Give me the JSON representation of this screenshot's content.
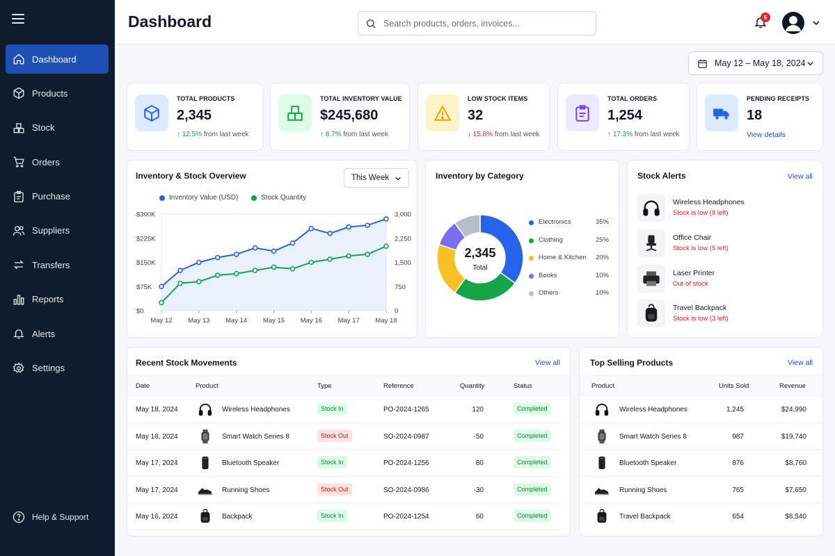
{
  "header": {
    "title": "Dashboard",
    "search_placeholder": "Search products, orders, invoices...",
    "notification_count": "5"
  },
  "sidebar": {
    "items": [
      {
        "label": "Dashboard",
        "icon": "home-icon"
      },
      {
        "label": "Products",
        "icon": "box-icon"
      },
      {
        "label": "Stock",
        "icon": "stock-icon"
      },
      {
        "label": "Orders",
        "icon": "cart-icon"
      },
      {
        "label": "Purchase",
        "icon": "clipboard-icon"
      },
      {
        "label": "Suppliers",
        "icon": "users-icon"
      },
      {
        "label": "Transfers",
        "icon": "transfer-icon"
      },
      {
        "label": "Reports",
        "icon": "bar-chart-icon"
      },
      {
        "label": "Alerts",
        "icon": "bell-icon"
      },
      {
        "label": "Settings",
        "icon": "gear-icon"
      }
    ],
    "help_label": "Help & Support"
  },
  "date_range": "May 12 – May 18, 2024",
  "kpis": [
    {
      "label": "TOTAL PRODUCTS",
      "value": "2,345",
      "delta": "12.5%",
      "delta_text": "from last week",
      "direction": "up",
      "color": "#2563eb",
      "bg": "#dbeafe"
    },
    {
      "label": "TOTAL INVENTORY VALUE",
      "value": "$245,680",
      "delta": "8.7%",
      "delta_text": "from last week",
      "direction": "up",
      "color": "#16a34a",
      "bg": "#dcfce7"
    },
    {
      "label": "LOW STOCK ITEMS",
      "value": "32",
      "delta": "15.8%",
      "delta_text": "from last week",
      "direction": "down",
      "color": "#f59e0b",
      "bg": "#fef3c7"
    },
    {
      "label": "TOTAL ORDERS",
      "value": "1,254",
      "delta": "17.3%",
      "delta_text": "from last week",
      "direction": "up",
      "color": "#7c3aed",
      "bg": "#ede9fe"
    },
    {
      "label": "PENDING RECEIPTS",
      "value": "18",
      "link": "View details",
      "color": "#2563eb",
      "bg": "#dbeafe"
    }
  ],
  "overview": {
    "title": "Inventory & Stock Overview",
    "select_value": "This Week"
  },
  "category": {
    "title": "Inventory by Category",
    "center_value": "2,345",
    "center_label": "Total"
  },
  "stock_alerts": {
    "title": "Stock Alerts",
    "view_all": "View all",
    "items": [
      {
        "name": "Wireless Headphones",
        "status": "Stock is low (8 left)",
        "icon": "headphones-icon"
      },
      {
        "name": "Office Chair",
        "status": "Stock is low (5 left)",
        "icon": "chair-icon"
      },
      {
        "name": "Laser Printer",
        "status": "Out of stock",
        "icon": "printer-icon"
      },
      {
        "name": "Travel Backpack",
        "status": "Stock is low (3 left)",
        "icon": "backpack-icon"
      }
    ]
  },
  "movements": {
    "title": "Recent Stock Movements",
    "view_all": "View all",
    "columns": [
      "Date",
      "Product",
      "Type",
      "Reference",
      "Quantity",
      "Status"
    ],
    "rows": [
      {
        "date": "May 18, 2024",
        "product": "Wireless Headphones",
        "icon": "headphones-icon",
        "type": "Stock In",
        "kind": "in",
        "reference": "PO-2024-1265",
        "quantity": "120",
        "status": "Completed"
      },
      {
        "date": "May 18, 2024",
        "product": "Smart Watch Series 8",
        "icon": "watch-icon",
        "type": "Stock Out",
        "kind": "out",
        "reference": "SO-2024-0987",
        "quantity": "-50",
        "status": "Completed"
      },
      {
        "date": "May 17, 2024",
        "product": "Bluetooth Speaker",
        "icon": "speaker-icon",
        "type": "Stock In",
        "kind": "in",
        "reference": "PO-2024-1256",
        "quantity": "80",
        "status": "Completed"
      },
      {
        "date": "May 17, 2024",
        "product": "Running Shoes",
        "icon": "shoe-icon",
        "type": "Stock Out",
        "kind": "out",
        "reference": "SO-2024-0986",
        "quantity": "-30",
        "status": "Completed"
      },
      {
        "date": "May 16, 2024",
        "product": "Backpack",
        "icon": "backpack-icon",
        "type": "Stock In",
        "kind": "in",
        "reference": "PO-2024-1254",
        "quantity": "60",
        "status": "Completed"
      }
    ]
  },
  "top_selling": {
    "title": "Top Selling Products",
    "view_all": "View all",
    "columns": [
      "Product",
      "Units Sold",
      "Revenue"
    ],
    "rows": [
      {
        "product": "Wireless Headphones",
        "icon": "headphones-icon",
        "units": "1,245",
        "revenue": "$24,990"
      },
      {
        "product": "Smart Watch Series 8",
        "icon": "watch-icon",
        "units": "987",
        "revenue": "$19,740"
      },
      {
        "product": "Bluetooth Speaker",
        "icon": "speaker-icon",
        "units": "876",
        "revenue": "$8,760"
      },
      {
        "product": "Running Shoes",
        "icon": "shoe-icon",
        "units": "765",
        "revenue": "$7,650"
      },
      {
        "product": "Travel Backpack",
        "icon": "backpack-icon",
        "units": "654",
        "revenue": "$6,540"
      }
    ]
  },
  "chart_data": [
    {
      "type": "line",
      "title": "Inventory & Stock Overview",
      "categories": [
        "May 12",
        "May 13",
        "May 14",
        "May 15",
        "May 16",
        "May 17",
        "May 18"
      ],
      "y_left": {
        "ticks": [
          "$0",
          "$75K",
          "$150K",
          "$225K",
          "$300K"
        ],
        "ylim": [
          0,
          300000
        ]
      },
      "y_right": {
        "ticks": [
          "0",
          "750",
          "1,500",
          "2,250",
          "3,000"
        ],
        "ylim": [
          0,
          3000
        ]
      },
      "legend_position": "top",
      "series": [
        {
          "name": "Inventory Value (USD)",
          "axis": "left",
          "color": "#2563eb",
          "x": [
            0,
            0.5,
            1,
            1.5,
            2,
            2.5,
            3,
            3.5,
            4,
            4.5,
            5,
            5.5,
            6
          ],
          "values": [
            75000,
            125000,
            150000,
            165000,
            175000,
            195000,
            185000,
            210000,
            255000,
            240000,
            260000,
            265000,
            285000
          ]
        },
        {
          "name": "Stock Quantity",
          "axis": "right",
          "color": "#16a34a",
          "x": [
            0,
            0.5,
            1,
            1.5,
            2,
            2.5,
            3,
            3.5,
            4,
            4.5,
            5,
            5.5,
            6
          ],
          "values": [
            250,
            850,
            900,
            1100,
            1150,
            1250,
            1350,
            1300,
            1500,
            1600,
            1700,
            1750,
            2000
          ]
        }
      ]
    },
    {
      "type": "pie",
      "title": "Inventory by Category",
      "categories": [
        "Electronics",
        "Clothing",
        "Home & Kitchen",
        "Books",
        "Others"
      ],
      "values": [
        35,
        25,
        20,
        10,
        10
      ],
      "labels": [
        "35%",
        "25%",
        "20%",
        "10%",
        "10%"
      ],
      "colors": [
        "#2563eb",
        "#16a34a",
        "#fbbf24",
        "#7c6cf0",
        "#b8bec9"
      ]
    }
  ]
}
